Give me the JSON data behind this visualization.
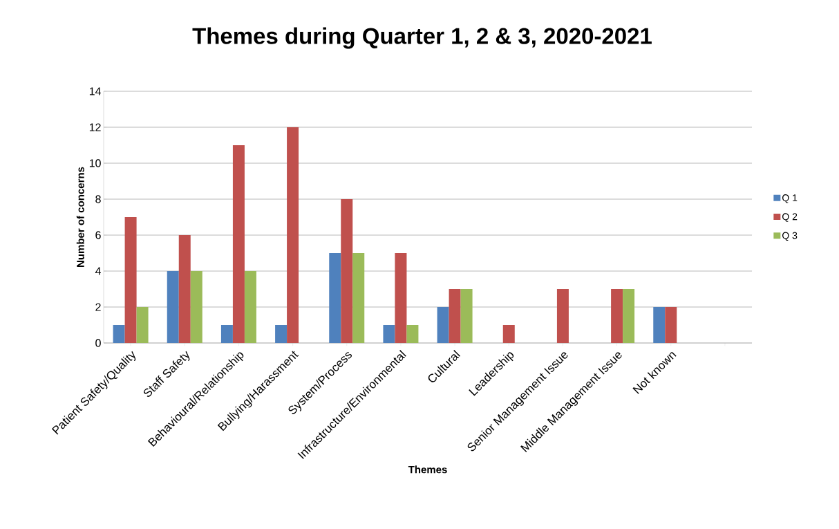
{
  "chart_data": {
    "type": "bar",
    "title": "Themes during Quarter 1, 2 & 3, 2020-2021",
    "xlabel": "Themes",
    "ylabel": "Number of concerns",
    "categories": [
      "Patient Safety/Quality",
      "Staff Safety",
      "Behavioural/Relationship",
      "Bullying/Harassment",
      "System/Process",
      "Infrastructure/Environmental",
      "Cultural",
      "Leadership",
      "Senior Management Issue",
      "Middle Management Issue",
      "Not known",
      null
    ],
    "series": [
      {
        "name": "Q 1",
        "color": "#4f81bd",
        "values": [
          1,
          4,
          1,
          1,
          5,
          1,
          2,
          0,
          0,
          0,
          2,
          null
        ]
      },
      {
        "name": "Q 2",
        "color": "#c0504d",
        "values": [
          7,
          6,
          11,
          12,
          8,
          5,
          3,
          1,
          3,
          3,
          2,
          null
        ]
      },
      {
        "name": "Q 3",
        "color": "#9bbb59",
        "values": [
          2,
          4,
          4,
          0,
          5,
          1,
          3,
          0,
          0,
          3,
          0,
          null
        ]
      }
    ],
    "ylim": [
      0,
      14
    ],
    "yticks": [
      0,
      2,
      4,
      6,
      8,
      10,
      12,
      14
    ],
    "grid": "y",
    "legend": "right"
  }
}
